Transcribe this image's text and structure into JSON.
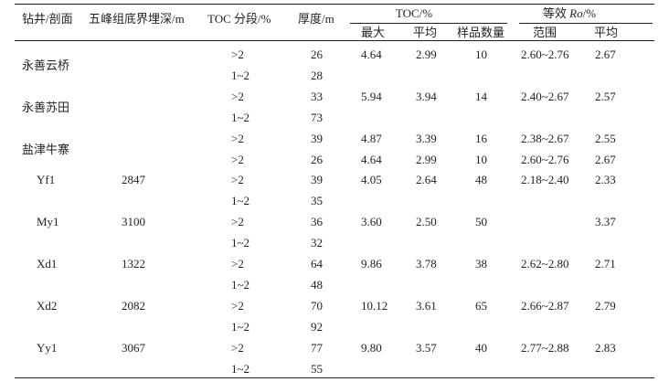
{
  "header": {
    "well": "钻井/剖面",
    "depth": "五峰组底界埋深/m",
    "toc_segment": "TOC 分段/%",
    "thickness": "厚度/m",
    "toc_group": "TOC/%",
    "toc_max": "最大",
    "toc_avg": "平均",
    "sample_count": "样品数量",
    "ro_group_prefix": "等效 ",
    "ro_group_italic": "Ro",
    "ro_group_suffix": "/%",
    "ro_range": "范围",
    "ro_avg": "平均"
  },
  "rows": [
    {
      "well": "永善云桥",
      "depth": "",
      "segment": ">2",
      "thickness": "26",
      "toc_max": "4.64",
      "toc_avg": "2.99",
      "samples": "10",
      "ro_range": "2.60~2.76",
      "ro_avg": "2.67"
    },
    {
      "well": "",
      "depth": "",
      "segment": "1~2",
      "thickness": "28",
      "toc_max": "",
      "toc_avg": "",
      "samples": "",
      "ro_range": "",
      "ro_avg": ""
    },
    {
      "well": "永善苏田",
      "depth": "",
      "segment": ">2",
      "thickness": "33",
      "toc_max": "5.94",
      "toc_avg": "3.94",
      "samples": "14",
      "ro_range": "2.40~2.67",
      "ro_avg": "2.57"
    },
    {
      "well": "",
      "depth": "",
      "segment": "1~2",
      "thickness": "73",
      "toc_max": "",
      "toc_avg": "",
      "samples": "",
      "ro_range": "",
      "ro_avg": ""
    },
    {
      "well": "盐津牛寨",
      "depth": "",
      "segment": ">2",
      "thickness": "39",
      "toc_max": "4.87",
      "toc_avg": "3.39",
      "samples": "16",
      "ro_range": "2.38~2.67",
      "ro_avg": "2.55"
    },
    {
      "well": "",
      "depth": "",
      "segment": ">2",
      "thickness": "26",
      "toc_max": "4.64",
      "toc_avg": "2.99",
      "samples": "10",
      "ro_range": "2.60~2.76",
      "ro_avg": "2.67"
    },
    {
      "well": "Yf1",
      "depth": "2847",
      "segment": ">2",
      "thickness": "39",
      "toc_max": "4.05",
      "toc_avg": "2.64",
      "samples": "48",
      "ro_range": "2.18~2.40",
      "ro_avg": "2.33"
    },
    {
      "well": "",
      "depth": "",
      "segment": "1~2",
      "thickness": "35",
      "toc_max": "",
      "toc_avg": "",
      "samples": "",
      "ro_range": "",
      "ro_avg": ""
    },
    {
      "well": "My1",
      "depth": "3100",
      "segment": ">2",
      "thickness": "36",
      "toc_max": "3.60",
      "toc_avg": "2.50",
      "samples": "50",
      "ro_range": "",
      "ro_avg": "3.37"
    },
    {
      "well": "",
      "depth": "",
      "segment": "1~2",
      "thickness": "32",
      "toc_max": "",
      "toc_avg": "",
      "samples": "",
      "ro_range": "",
      "ro_avg": ""
    },
    {
      "well": "Xd1",
      "depth": "1322",
      "segment": ">2",
      "thickness": "64",
      "toc_max": "9.86",
      "toc_avg": "3.78",
      "samples": "38",
      "ro_range": "2.62~2.80",
      "ro_avg": "2.71"
    },
    {
      "well": "",
      "depth": "",
      "segment": "1~2",
      "thickness": "48",
      "toc_max": "",
      "toc_avg": "",
      "samples": "",
      "ro_range": "",
      "ro_avg": ""
    },
    {
      "well": "Xd2",
      "depth": "2082",
      "segment": ">2",
      "thickness": "70",
      "toc_max": "10.12",
      "toc_avg": "3.61",
      "samples": "65",
      "ro_range": "2.66~2.87",
      "ro_avg": "2.79"
    },
    {
      "well": "",
      "depth": "",
      "segment": "1~2",
      "thickness": "92",
      "toc_max": "",
      "toc_avg": "",
      "samples": "",
      "ro_range": "",
      "ro_avg": ""
    },
    {
      "well": "Yy1",
      "depth": "3067",
      "segment": ">2",
      "thickness": "77",
      "toc_max": "9.80",
      "toc_avg": "3.57",
      "samples": "40",
      "ro_range": "2.77~2.88",
      "ro_avg": "2.83"
    },
    {
      "well": "",
      "depth": "",
      "segment": "1~2",
      "thickness": "55",
      "toc_max": "",
      "toc_avg": "",
      "samples": "",
      "ro_range": "",
      "ro_avg": ""
    }
  ]
}
